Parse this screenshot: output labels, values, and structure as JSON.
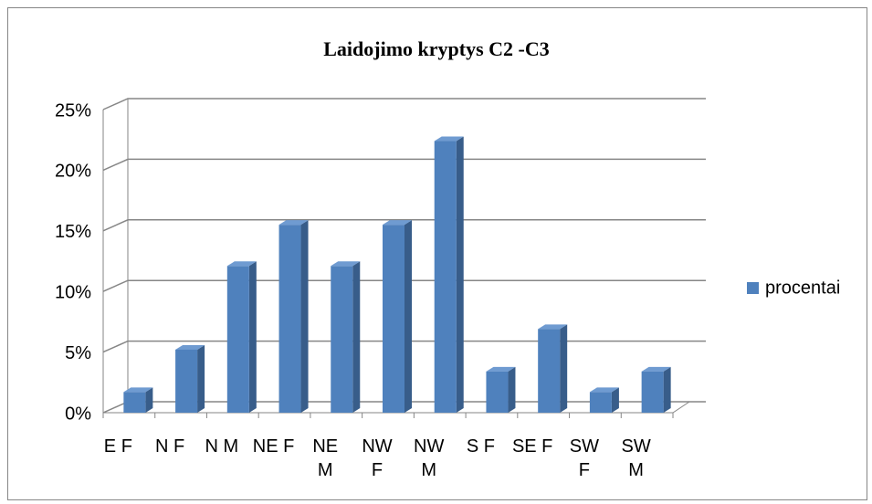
{
  "chart_data": {
    "type": "bar",
    "title": "Laidojimo kryptys C2 -C3",
    "categories": [
      "E F",
      "N F",
      "N M",
      "NE F",
      "NE M",
      "NW F",
      "NW M",
      "S F",
      "SE F",
      "SW F",
      "SW M"
    ],
    "series": [
      {
        "name": "procentai",
        "color": "#4f81bd",
        "values": [
          1.7,
          5.2,
          12.1,
          15.5,
          12.1,
          15.5,
          22.4,
          3.4,
          6.9,
          1.7,
          3.4
        ]
      }
    ],
    "ylim": [
      0,
      25
    ],
    "yticks": [
      {
        "value": 0,
        "label": "0%"
      },
      {
        "value": 5,
        "label": "5%"
      },
      {
        "value": 10,
        "label": "10%"
      },
      {
        "value": 15,
        "label": "15%"
      },
      {
        "value": 20,
        "label": "20%"
      },
      {
        "value": 25,
        "label": "25%"
      }
    ],
    "grid": true,
    "legend": "right"
  }
}
